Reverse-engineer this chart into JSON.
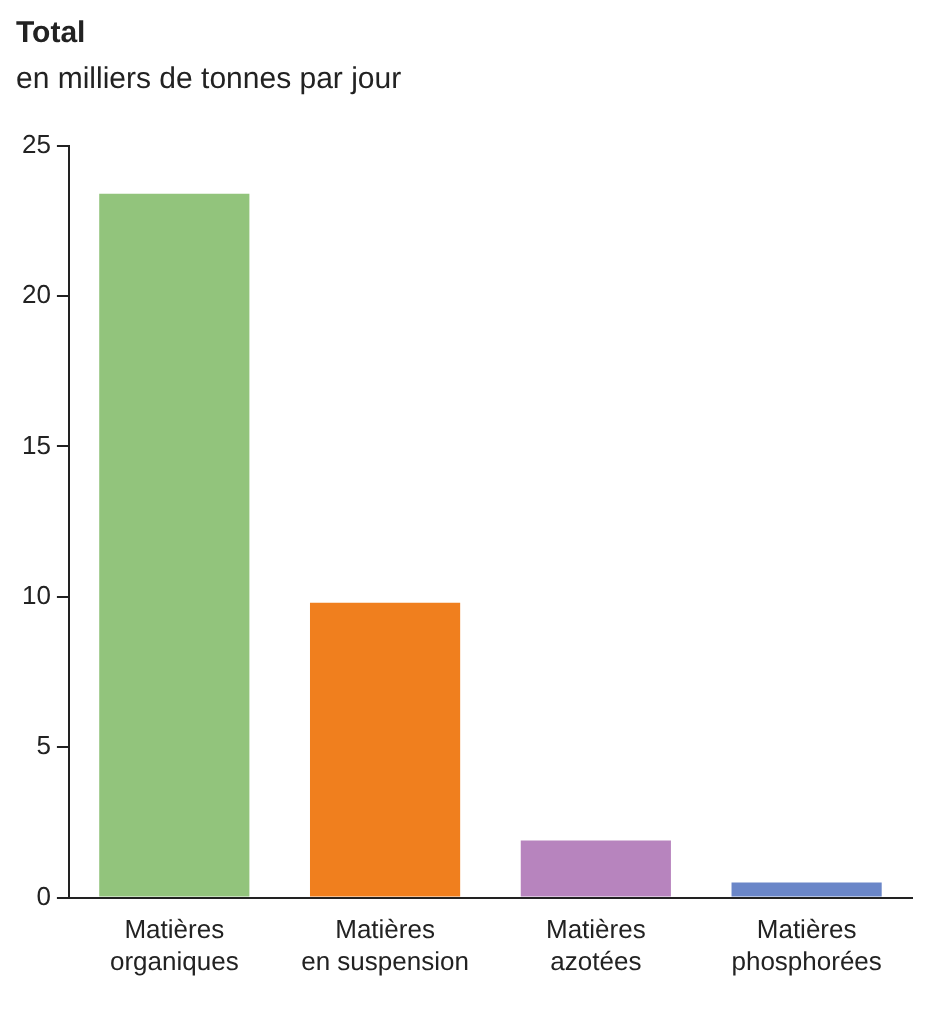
{
  "chart_data": {
    "type": "bar",
    "title": "Total",
    "subtitle": "en milliers de tonnes par jour",
    "categories": [
      "Matières organiques",
      "Matières en suspension",
      "Matières azotées",
      "Matières phosphorées"
    ],
    "values": [
      23.4,
      9.8,
      1.9,
      0.5
    ],
    "colors": [
      "#92c47c",
      "#f07f1e",
      "#b784be",
      "#6a86c8"
    ],
    "ylim": [
      0,
      25
    ],
    "yticks": [
      0,
      5,
      10,
      15,
      20,
      25
    ],
    "grid": false,
    "legend": false
  }
}
